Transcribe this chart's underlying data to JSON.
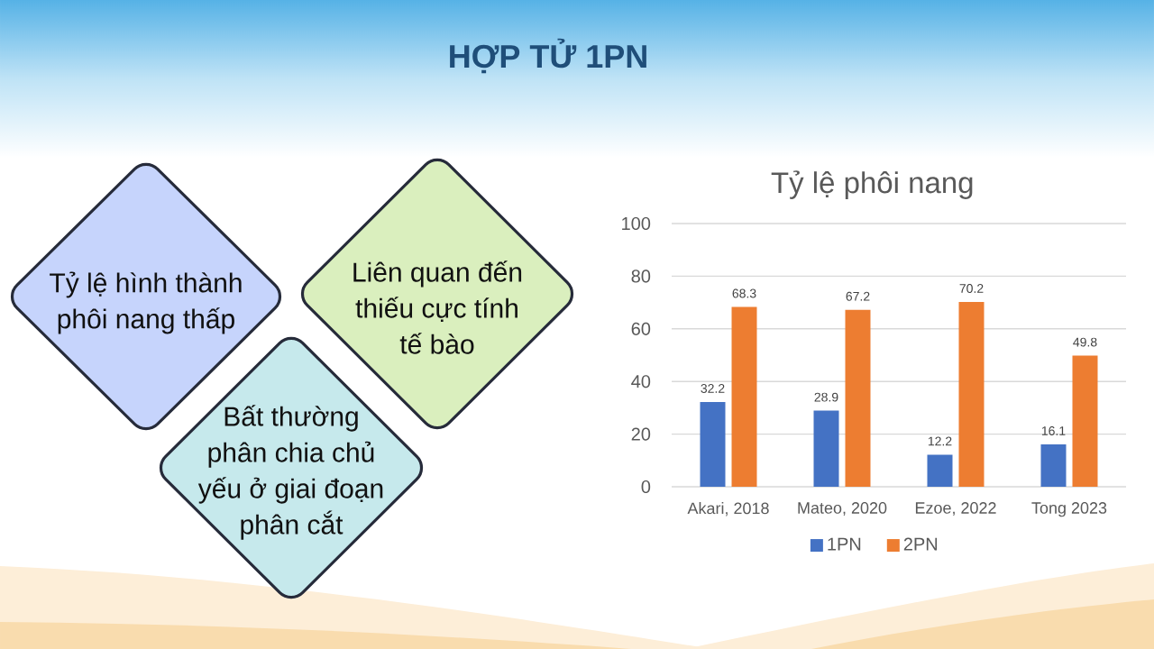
{
  "chart_data": [
    {
      "type": "other",
      "title": "HỢP TỬ 1PN",
      "annotations": [
        "Tỷ lệ hình thành phôi nang thấp",
        "Liên quan đến thiếu cực tính tế bào",
        "Bất thường phân chia chủ yếu ở giai đoạn phân cắt"
      ]
    },
    {
      "type": "bar",
      "title": "Tỷ lệ phôi nang",
      "categories": [
        "Akari, 2018",
        "Mateo, 2020",
        "Ezoe, 2022",
        "Tong 2023"
      ],
      "series": [
        {
          "name": "1PN",
          "color": "#4472c4",
          "values": [
            32.2,
            28.9,
            12.2,
            16.1
          ]
        },
        {
          "name": "2PN",
          "color": "#ed7d31",
          "values": [
            68.3,
            67.2,
            70.2,
            49.8
          ]
        }
      ],
      "ylim": [
        0,
        100
      ],
      "yticks": [
        0,
        20,
        40,
        60,
        80,
        100
      ],
      "grid": "y",
      "legend": "bottom",
      "data_labels": true
    }
  ]
}
